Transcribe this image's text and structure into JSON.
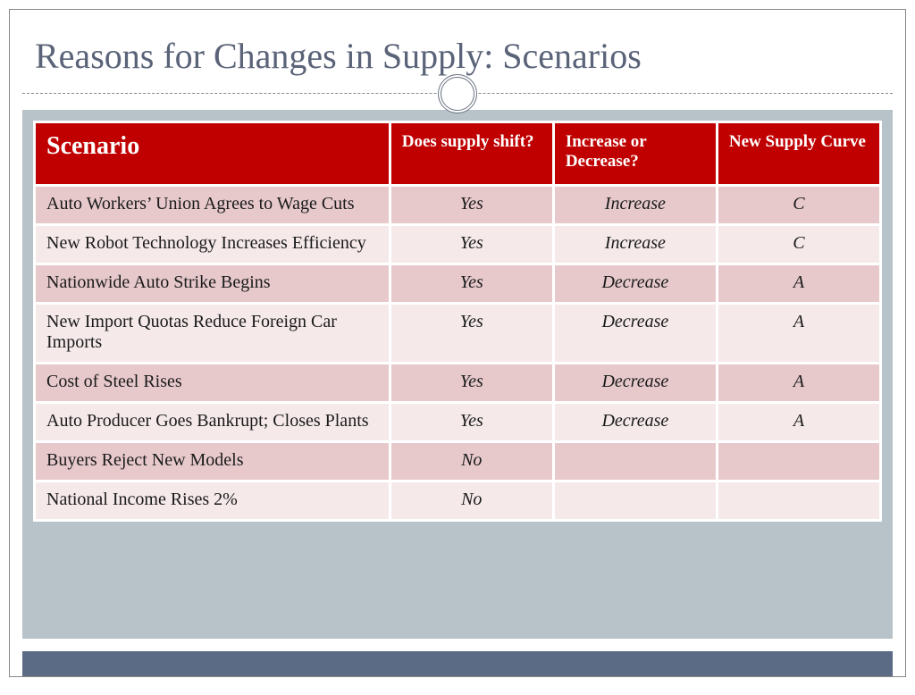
{
  "title": "Reasons for Changes in Supply: Scenarios",
  "colors": {
    "title_text": "#5a6378",
    "header_bg": "#c00000",
    "header_text": "#ffffff",
    "row_odd_bg": "#e7c9cc",
    "row_even_bg": "#f5e9ea",
    "content_frame_bg": "#b8c3c9",
    "footer_bar_bg": "#5b6a85",
    "cell_border": "#ffffff",
    "slide_border": "#888888",
    "divider": "#888888"
  },
  "typography": {
    "title_fontsize_pt": 30,
    "header_large_fontsize_pt": 21,
    "header_small_fontsize_pt": 14,
    "cell_fontsize_pt": 15,
    "font_family": "Georgia, serif"
  },
  "table": {
    "type": "table",
    "columns": [
      {
        "label": "Scenario",
        "width_pct": 42,
        "align": "left"
      },
      {
        "label": "Does supply shift?",
        "width_pct": 18,
        "align": "center"
      },
      {
        "label": "Increase or Decrease?",
        "width_pct": 20,
        "align": "center"
      },
      {
        "label": "New Supply Curve",
        "width_pct": 20,
        "align": "center"
      }
    ],
    "rows": [
      {
        "scenario": "Auto Workers’ Union Agrees to Wage Cuts",
        "shift": "Yes",
        "direction": "Increase",
        "curve": "C"
      },
      {
        "scenario": "New Robot Technology Increases Efficiency",
        "shift": "Yes",
        "direction": "Increase",
        "curve": "C"
      },
      {
        "scenario": "Nationwide Auto Strike Begins",
        "shift": "Yes",
        "direction": "Decrease",
        "curve": "A"
      },
      {
        "scenario": "New Import Quotas Reduce Foreign Car Imports",
        "shift": "Yes",
        "direction": "Decrease",
        "curve": "A"
      },
      {
        "scenario": "Cost of Steel Rises",
        "shift": "Yes",
        "direction": "Decrease",
        "curve": "A"
      },
      {
        "scenario": "Auto Producer Goes Bankrupt; Closes Plants",
        "shift": "Yes",
        "direction": "Decrease",
        "curve": "A"
      },
      {
        "scenario": "Buyers Reject New Models",
        "shift": "No",
        "direction": "",
        "curve": ""
      },
      {
        "scenario": "National Income Rises 2%",
        "shift": "No",
        "direction": "",
        "curve": ""
      }
    ]
  }
}
